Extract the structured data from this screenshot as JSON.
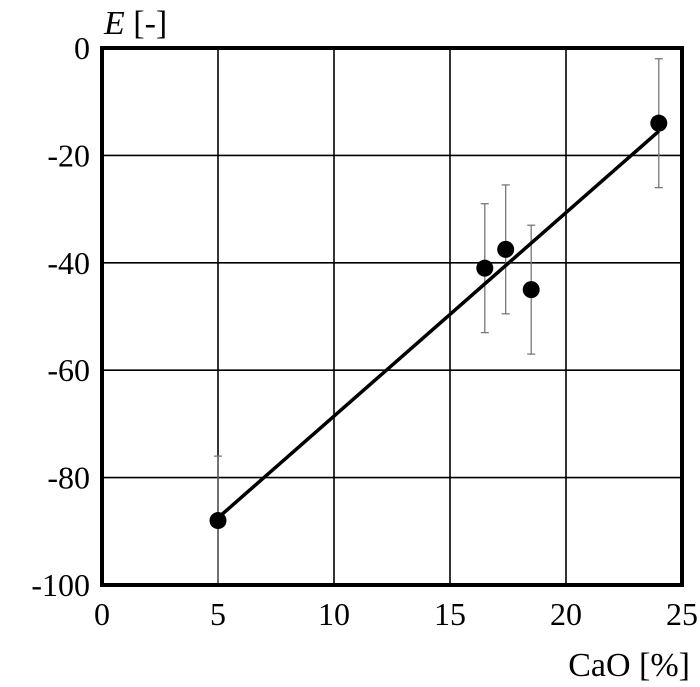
{
  "chart_data": {
    "type": "scatter",
    "ylabel_symbol": "E",
    "ylabel_unit": " [-]",
    "xlabel": "CaO [%]",
    "xlim": [
      0,
      25
    ],
    "ylim": [
      -100,
      0
    ],
    "xticks": [
      0,
      5,
      10,
      15,
      20,
      25
    ],
    "yticks": [
      0,
      -20,
      -40,
      -60,
      -80,
      -100
    ],
    "grid": true,
    "points": [
      {
        "x": 5.0,
        "y": -88,
        "err": 12
      },
      {
        "x": 16.5,
        "y": -41,
        "err": 12
      },
      {
        "x": 17.4,
        "y": -37.5,
        "err": 12
      },
      {
        "x": 18.5,
        "y": -45,
        "err": 12
      },
      {
        "x": 24.0,
        "y": -14,
        "err": 12
      }
    ],
    "fit_line": {
      "x1": 5.0,
      "y1": -87.5,
      "x2": 24.0,
      "y2": -15.5
    },
    "colors": {
      "marks": "#000000",
      "grid": "#000000",
      "errorbar": "#777777"
    }
  }
}
